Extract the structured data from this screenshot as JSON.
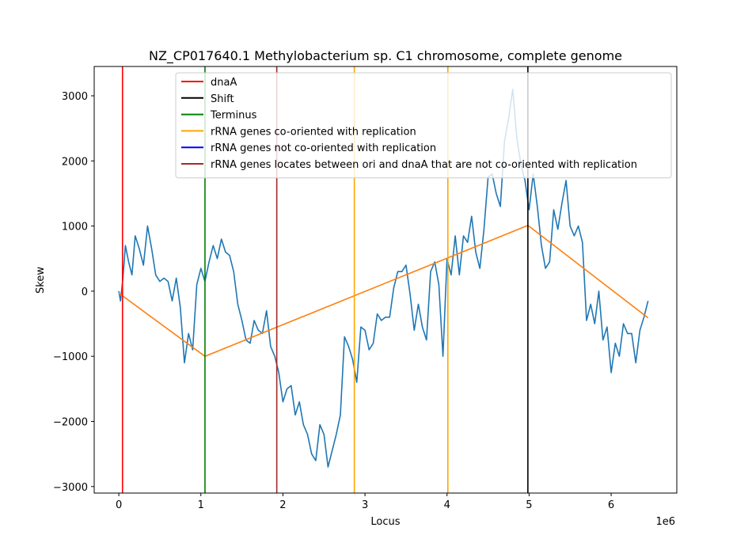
{
  "chart_data": {
    "type": "line",
    "title": "NZ_CP017640.1 Methylobacterium sp. C1 chromosome, complete genome",
    "xlabel": "Locus",
    "ylabel": "Skew",
    "x_offset_text": "1e6",
    "xlim": [
      -300000,
      6800000
    ],
    "ylim": [
      -3100,
      3450
    ],
    "x_ticks": [
      0,
      1000000,
      2000000,
      3000000,
      4000000,
      5000000,
      6000000
    ],
    "x_tick_labels": [
      "0",
      "1",
      "2",
      "3",
      "4",
      "5",
      "6"
    ],
    "y_ticks": [
      -3000,
      -2000,
      -1000,
      0,
      1000,
      2000,
      3000
    ],
    "y_tick_labels": [
      "−3000",
      "−2000",
      "−1000",
      "0",
      "1000",
      "2000",
      "3000"
    ],
    "grid": false,
    "legend_position": "top-right",
    "legend": [
      {
        "label": "dnaA",
        "color": "#ff0000"
      },
      {
        "label": "Shift",
        "color": "#000000"
      },
      {
        "label": "Terminus",
        "color": "#008000"
      },
      {
        "label": "rRNA genes co-oriented with replication",
        "color": "#ffa500"
      },
      {
        "label": "rRNA genes not co-oriented with replication",
        "color": "#0000ff"
      },
      {
        "label": "rRNA genes locates between ori and dnaA that are not co-oriented with replication",
        "color": "#a52a2a"
      }
    ],
    "vertical_lines": [
      {
        "x": 45000,
        "color": "#ff0000"
      },
      {
        "x": 1050000,
        "color": "#008000"
      },
      {
        "x": 1925000,
        "color": "#a52a2a"
      },
      {
        "x": 2870000,
        "color": "#ffa500"
      },
      {
        "x": 4010000,
        "color": "#ffa500"
      },
      {
        "x": 4985000,
        "color": "#000000"
      }
    ],
    "series": [
      {
        "color": "#1f77b4",
        "x": [
          0,
          20000,
          50000,
          80000,
          120000,
          160000,
          200000,
          250000,
          300000,
          350000,
          400000,
          450000,
          500000,
          550000,
          600000,
          650000,
          700000,
          750000,
          800000,
          850000,
          900000,
          950000,
          1000000,
          1050000,
          1100000,
          1150000,
          1200000,
          1250000,
          1300000,
          1350000,
          1400000,
          1450000,
          1500000,
          1550000,
          1600000,
          1650000,
          1700000,
          1750000,
          1800000,
          1850000,
          1900000,
          1950000,
          2000000,
          2050000,
          2100000,
          2150000,
          2200000,
          2250000,
          2300000,
          2350000,
          2400000,
          2450000,
          2500000,
          2550000,
          2600000,
          2650000,
          2700000,
          2750000,
          2800000,
          2850000,
          2900000,
          2950000,
          3000000,
          3050000,
          3100000,
          3150000,
          3200000,
          3250000,
          3300000,
          3350000,
          3400000,
          3450000,
          3500000,
          3550000,
          3600000,
          3650000,
          3700000,
          3750000,
          3800000,
          3850000,
          3900000,
          3950000,
          4000000,
          4050000,
          4100000,
          4150000,
          4200000,
          4250000,
          4300000,
          4350000,
          4400000,
          4450000,
          4500000,
          4550000,
          4600000,
          4650000,
          4700000,
          4750000,
          4800000,
          4850000,
          4900000,
          4950000,
          5000000,
          5050000,
          5100000,
          5150000,
          5200000,
          5250000,
          5300000,
          5350000,
          5400000,
          5450000,
          5500000,
          5550000,
          5600000,
          5650000,
          5700000,
          5750000,
          5800000,
          5850000,
          5900000,
          5950000,
          6000000,
          6050000,
          6100000,
          6150000,
          6200000,
          6250000,
          6300000,
          6350000,
          6400000,
          6450000
        ],
        "values": [
          0,
          -150,
          200,
          700,
          450,
          250,
          850,
          650,
          400,
          1000,
          650,
          250,
          150,
          200,
          150,
          -150,
          200,
          -250,
          -1100,
          -650,
          -900,
          100,
          350,
          150,
          450,
          700,
          500,
          800,
          600,
          550,
          300,
          -200,
          -450,
          -750,
          -800,
          -450,
          -600,
          -650,
          -300,
          -850,
          -1000,
          -1250,
          -1700,
          -1500,
          -1450,
          -1900,
          -1700,
          -2050,
          -2200,
          -2500,
          -2600,
          -2050,
          -2200,
          -2700,
          -2450,
          -2200,
          -1900,
          -700,
          -850,
          -1050,
          -1400,
          -550,
          -600,
          -900,
          -800,
          -350,
          -450,
          -400,
          -400,
          50,
          300,
          300,
          400,
          -50,
          -600,
          -200,
          -550,
          -750,
          300,
          450,
          100,
          -1000,
          500,
          250,
          850,
          250,
          850,
          750,
          1150,
          600,
          350,
          950,
          1750,
          1800,
          1500,
          1300,
          2300,
          2650,
          3100,
          2350,
          1950,
          1700,
          1250,
          1800,
          1300,
          700,
          350,
          450,
          1250,
          950,
          1350,
          1700,
          1000,
          850,
          1000,
          750,
          -450,
          -200,
          -500,
          0,
          -750,
          -550,
          -1250,
          -800,
          -1000,
          -500,
          -650,
          -650,
          -1100,
          -600,
          -400,
          -150
        ]
      },
      {
        "color": "#ff7f0e",
        "x": [
          0,
          1050000,
          4985000,
          6450000
        ],
        "values": [
          -30,
          -1000,
          1010,
          -410
        ]
      }
    ]
  }
}
